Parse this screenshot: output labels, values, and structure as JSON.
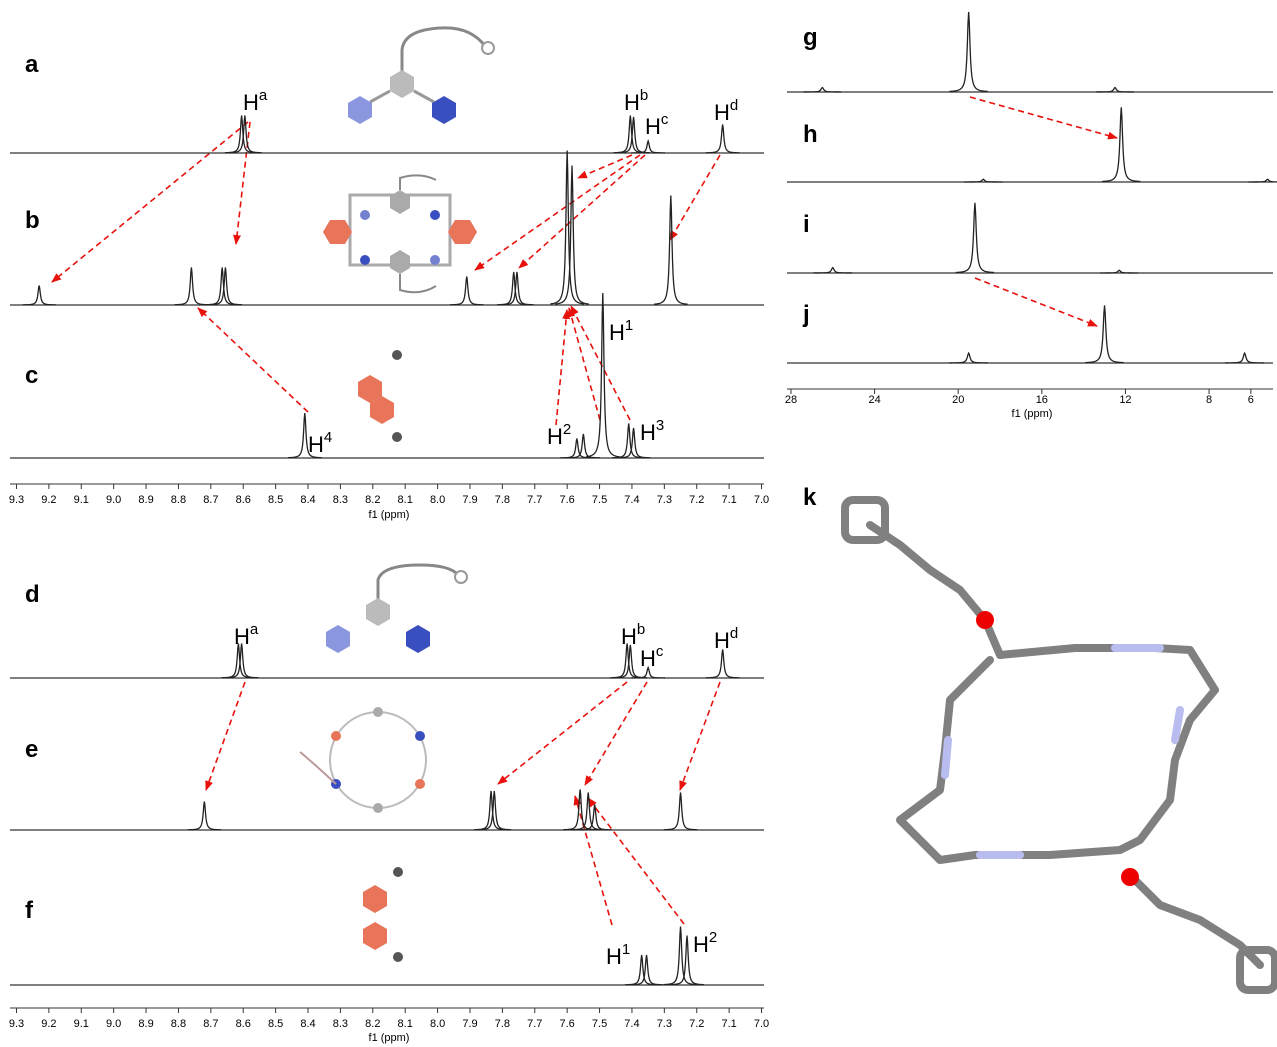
{
  "chart_data": [
    {
      "type": "spectrum",
      "xlabel": "f1 (ppm)",
      "xlim": [
        9.32,
        6.98
      ],
      "xticks": [
        9.3,
        9.2,
        9.1,
        {
          "value": 9,
          "label": "9.0"
        },
        8.9,
        8.8,
        8.7,
        8.6,
        8.5,
        8.4,
        8.3,
        8.2,
        8.1,
        {
          "value": 8,
          "label": "8.0"
        },
        7.9,
        7.8,
        7.7,
        7.6,
        7.5,
        7.4,
        7.3,
        7.2,
        7.1,
        {
          "value": 7,
          "label": "7.0"
        }
      ],
      "traces": [
        {
          "label": "a",
          "peaks": [
            {
              "x": 8.605,
              "h": 0.25
            },
            {
              "x": 8.595,
              "h": 0.25
            },
            {
              "x": 7.405,
              "h": 0.25
            },
            {
              "x": 7.395,
              "h": 0.24
            },
            {
              "x": 7.35,
              "h": 0.08
            },
            {
              "x": 7.12,
              "h": 0.19
            }
          ],
          "peak_labels": [
            {
              "text": "H",
              "sup": "a"
            },
            {
              "text": "H",
              "sup": "b"
            },
            {
              "text": "H",
              "sup": "c"
            },
            {
              "text": "H",
              "sup": "d"
            }
          ]
        },
        {
          "label": "b",
          "peaks": [
            {
              "x": 9.23,
              "h": 0.13
            },
            {
              "x": 8.76,
              "h": 0.25
            },
            {
              "x": 8.665,
              "h": 0.25
            },
            {
              "x": 8.655,
              "h": 0.25
            },
            {
              "x": 7.91,
              "h": 0.19
            },
            {
              "x": 7.765,
              "h": 0.22
            },
            {
              "x": 7.755,
              "h": 0.22
            },
            {
              "x": 7.6,
              "h": 1.03
            },
            {
              "x": 7.585,
              "h": 0.93
            },
            {
              "x": 7.28,
              "h": 0.73
            }
          ],
          "peak_labels": []
        },
        {
          "label": "c",
          "peaks": [
            {
              "x": 8.41,
              "h": 0.3
            },
            {
              "x": 7.57,
              "h": 0.13
            },
            {
              "x": 7.55,
              "h": 0.16
            },
            {
              "x": 7.49,
              "h": 1.1
            },
            {
              "x": 7.41,
              "h": 0.23
            },
            {
              "x": 7.395,
              "h": 0.2
            }
          ],
          "peak_labels": [
            {
              "text": "H",
              "sup": "4"
            },
            {
              "text": "H",
              "sup": "1"
            },
            {
              "text": "H",
              "sup": "2"
            },
            {
              "text": "H",
              "sup": "3"
            }
          ]
        }
      ]
    },
    {
      "type": "spectrum",
      "xlabel": "f1 (ppm)",
      "xlim": [
        9.32,
        6.98
      ],
      "xticks": [
        9.3,
        9.2,
        9.1,
        {
          "value": 9,
          "label": "9.0"
        },
        8.9,
        8.8,
        8.7,
        8.6,
        8.5,
        8.4,
        8.3,
        8.2,
        8.1,
        {
          "value": 8,
          "label": "8.0"
        },
        7.9,
        7.8,
        7.7,
        7.6,
        7.5,
        7.4,
        7.3,
        7.2,
        7.1,
        {
          "value": 7,
          "label": "7.0"
        }
      ],
      "traces": [
        {
          "label": "d",
          "peaks": [
            {
              "x": 8.615,
              "h": 0.23
            },
            {
              "x": 8.605,
              "h": 0.23
            },
            {
              "x": 7.415,
              "h": 0.23
            },
            {
              "x": 7.405,
              "h": 0.22
            },
            {
              "x": 7.35,
              "h": 0.07
            },
            {
              "x": 7.12,
              "h": 0.19
            }
          ],
          "peak_labels": [
            {
              "text": "H",
              "sup": "a"
            },
            {
              "text": "H",
              "sup": "b"
            },
            {
              "text": "H",
              "sup": "c"
            },
            {
              "text": "H",
              "sup": "d"
            }
          ]
        },
        {
          "label": "e",
          "peaks": [
            {
              "x": 8.72,
              "h": 0.19
            },
            {
              "x": 7.835,
              "h": 0.26
            },
            {
              "x": 7.825,
              "h": 0.26
            },
            {
              "x": 7.56,
              "h": 0.27
            },
            {
              "x": 7.535,
              "h": 0.25
            },
            {
              "x": 7.515,
              "h": 0.17
            },
            {
              "x": 7.25,
              "h": 0.25
            }
          ],
          "peak_labels": []
        },
        {
          "label": "f",
          "peaks": [
            {
              "x": 7.37,
              "h": 0.2
            },
            {
              "x": 7.355,
              "h": 0.2
            },
            {
              "x": 7.25,
              "h": 0.39
            },
            {
              "x": 7.23,
              "h": 0.33
            }
          ],
          "peak_labels": [
            {
              "text": "H",
              "sup": "1"
            },
            {
              "text": "H",
              "sup": "2"
            }
          ]
        }
      ]
    },
    {
      "type": "spectrum",
      "xlabel": "f1 (ppm)",
      "xlim": [
        28.19,
        4.75
      ],
      "xticks": [
        28,
        24,
        20,
        16,
        12,
        8,
        6
      ],
      "traces": [
        {
          "label": "g",
          "peaks": [
            {
              "x": 26.5,
              "h": 0.05
            },
            {
              "x": 19.5,
              "h": 0.89
            },
            {
              "x": 12.5,
              "h": 0.05
            }
          ],
          "peak_labels": []
        },
        {
          "label": "h",
          "peaks": [
            {
              "x": 18.8,
              "h": 0.03
            },
            {
              "x": 12.2,
              "h": 0.83
            },
            {
              "x": 5.2,
              "h": 0.03
            }
          ],
          "peak_labels": []
        },
        {
          "label": "i",
          "peaks": [
            {
              "x": 26.0,
              "h": 0.06
            },
            {
              "x": 19.2,
              "h": 0.78
            },
            {
              "x": 12.3,
              "h": 0.03
            }
          ],
          "peak_labels": []
        },
        {
          "label": "j",
          "peaks": [
            {
              "x": 19.5,
              "h": 0.11
            },
            {
              "x": 13.0,
              "h": 0.64
            },
            {
              "x": 6.3,
              "h": 0.11
            }
          ],
          "peak_labels": []
        }
      ]
    }
  ],
  "structure": {
    "label": "k"
  }
}
